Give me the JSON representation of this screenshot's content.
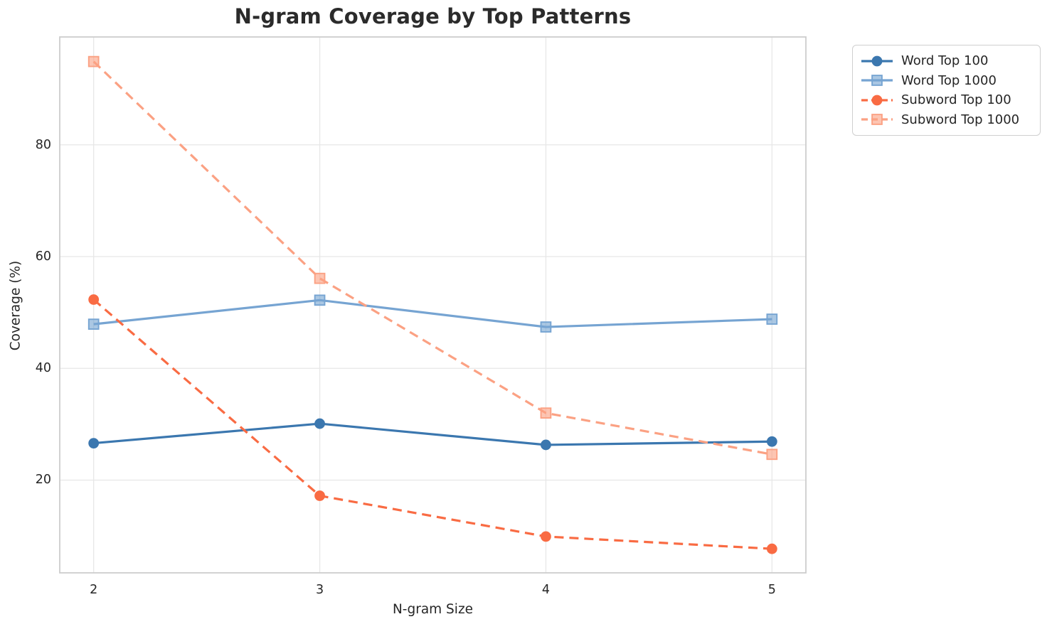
{
  "chart_data": {
    "type": "line",
    "title": "N-gram Coverage by Top Patterns",
    "xlabel": "N-gram Size",
    "ylabel": "Coverage (%)",
    "x": [
      2,
      3,
      4,
      5
    ],
    "xticks": [
      2,
      3,
      4,
      5
    ],
    "yticks": [
      20,
      40,
      60,
      80
    ],
    "xlim": [
      1.85,
      5.15
    ],
    "ylim": [
      3.4,
      99.3
    ],
    "grid": true,
    "legend_position": "outside-top-right",
    "series": [
      {
        "name": "Word Top 100",
        "values": [
          26.6,
          30.1,
          26.3,
          26.9
        ],
        "color": "#3b77af",
        "marker": "circle",
        "linestyle": "solid"
      },
      {
        "name": "Word Top 1000",
        "values": [
          47.9,
          52.2,
          47.4,
          48.8
        ],
        "color": "#76a4d2",
        "marker": "square",
        "linestyle": "solid"
      },
      {
        "name": "Subword Top 100",
        "values": [
          52.3,
          17.2,
          9.9,
          7.7
        ],
        "color": "#f96b43",
        "marker": "circle",
        "linestyle": "dashed"
      },
      {
        "name": "Subword Top 1000",
        "values": [
          94.9,
          56.1,
          32.0,
          24.6
        ],
        "color": "#fba183",
        "marker": "square",
        "linestyle": "dashed"
      }
    ],
    "colors": {
      "grid": "#e7e7e7",
      "spine": "#cdcdcd",
      "text": "#262626"
    }
  }
}
